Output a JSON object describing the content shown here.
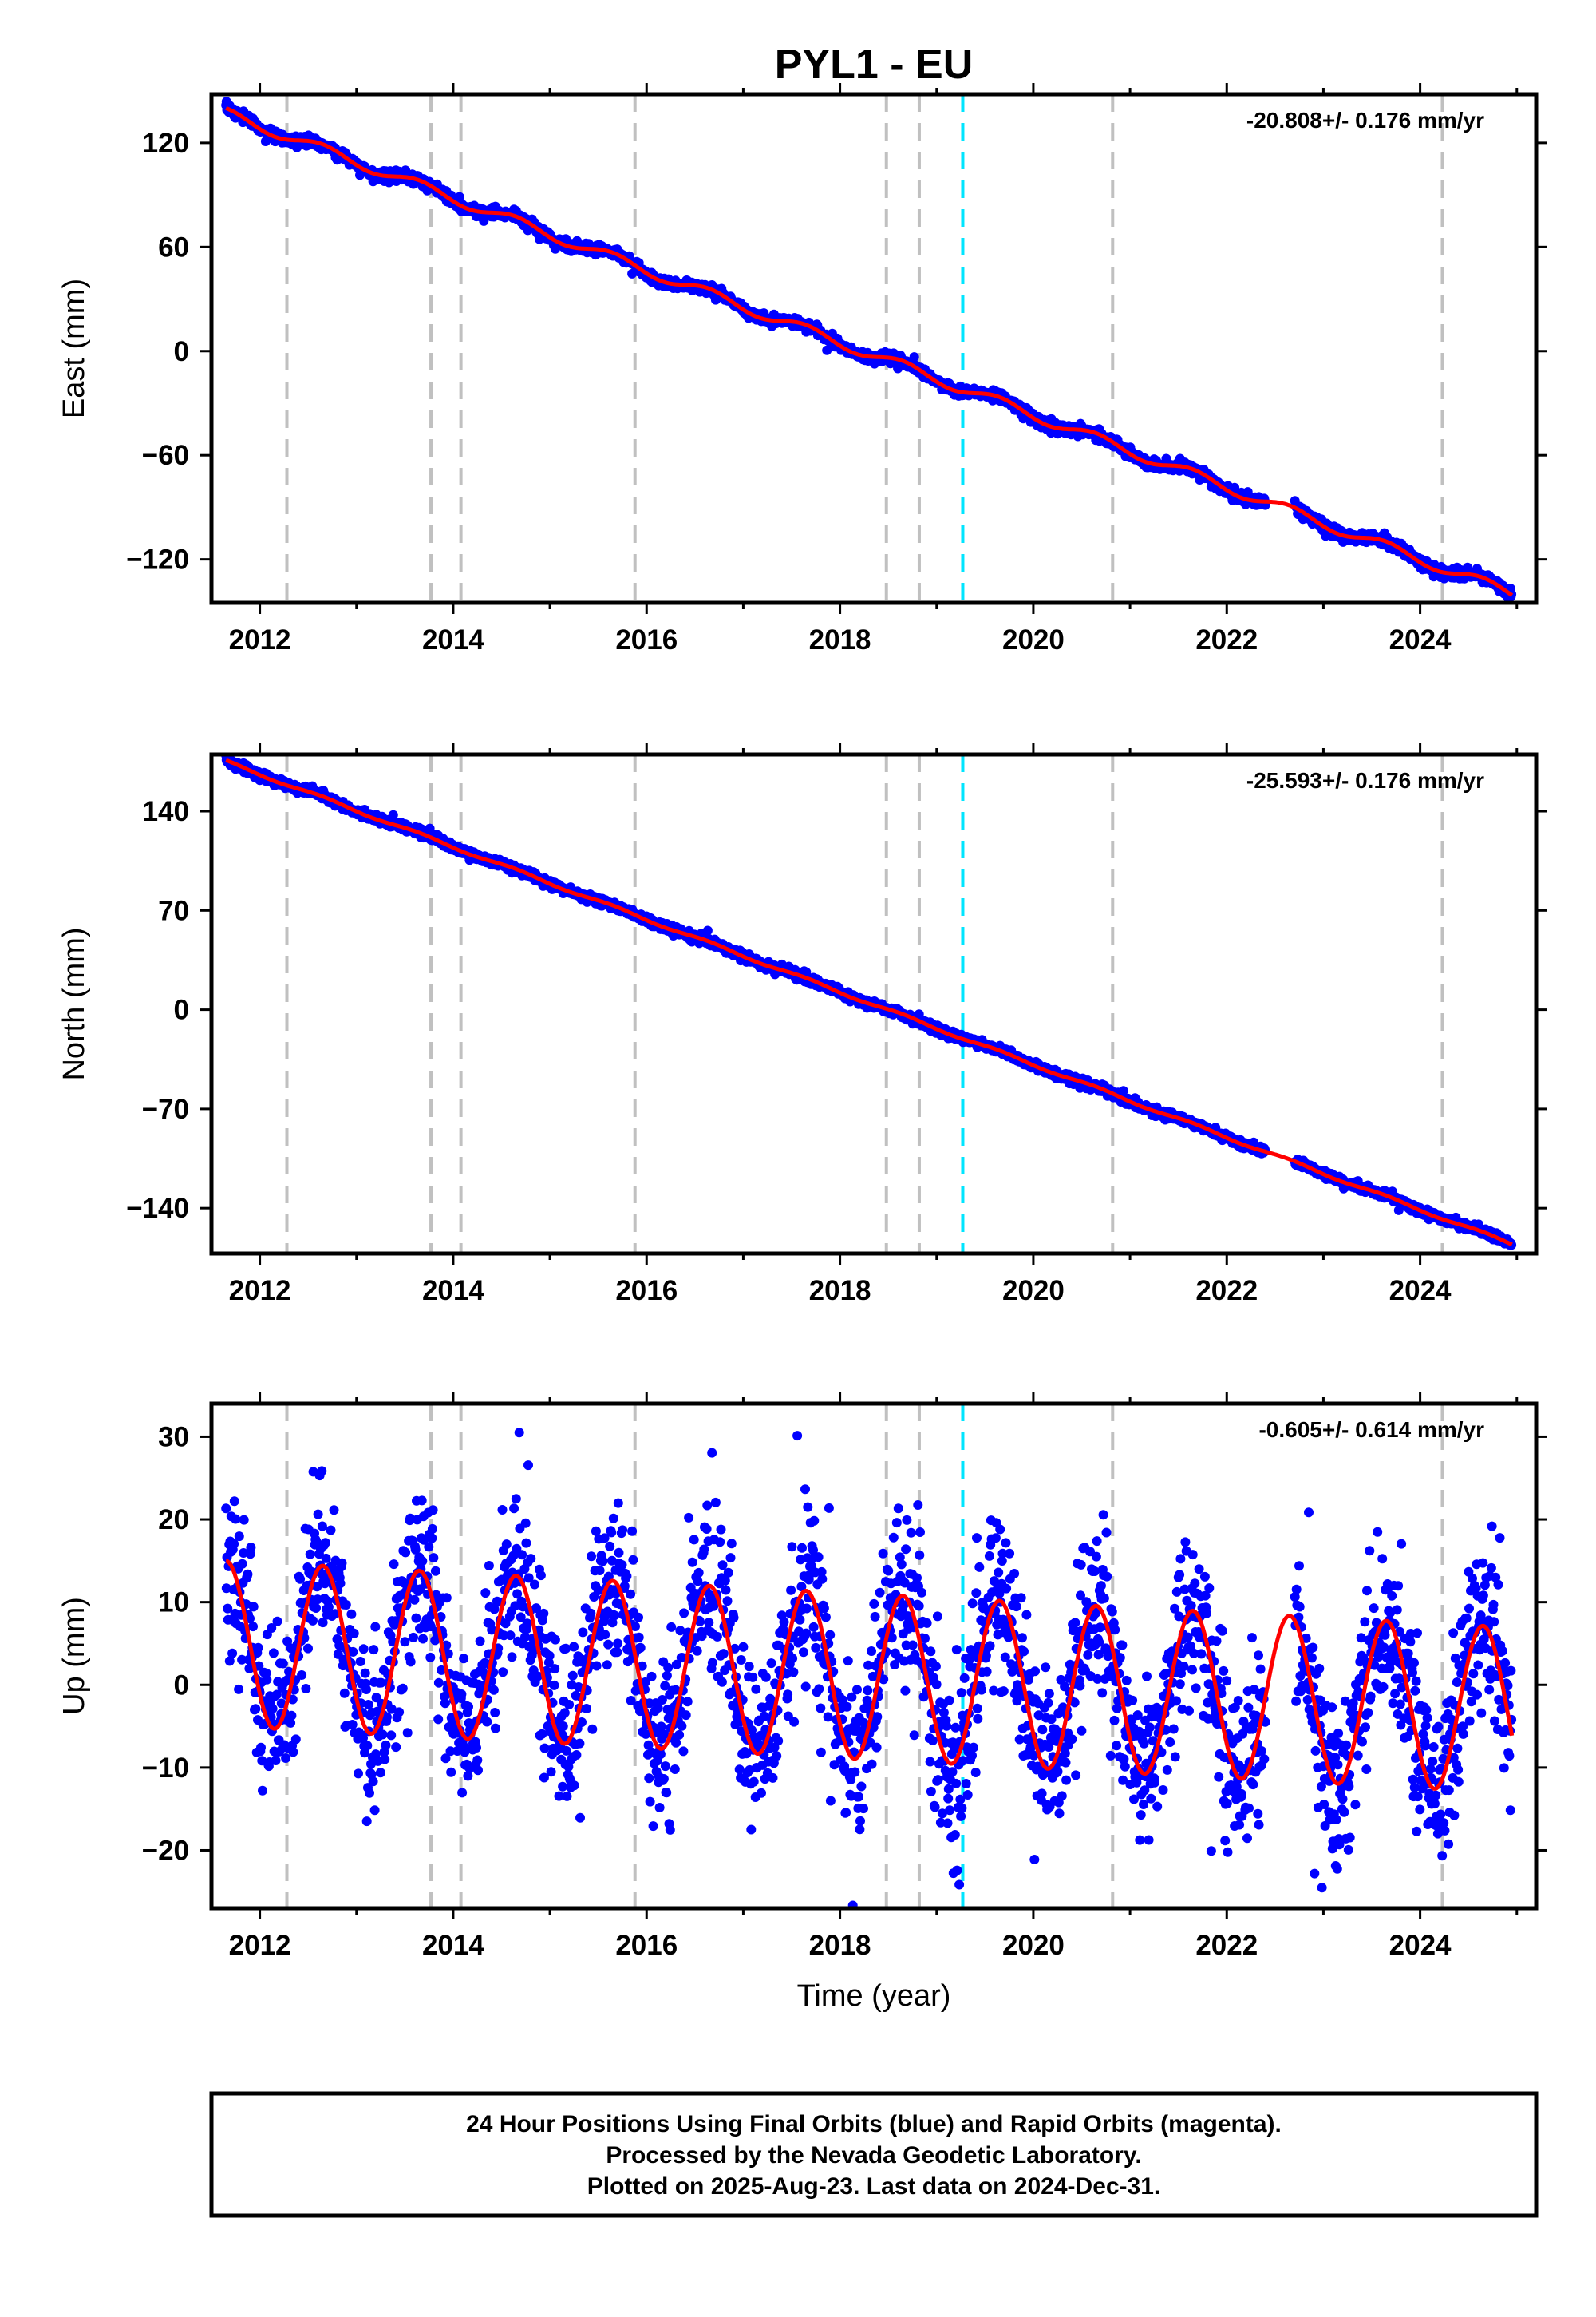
{
  "title": "PYL1 - EU",
  "colors": {
    "final_orbits": "#0000ff",
    "rapid_orbits": "#ff00ff",
    "model_fit": "#ff0000",
    "equipment_change": "#c0c0c0",
    "earthquake": "#00e5ff"
  },
  "chart_data": [
    {
      "type": "scatter",
      "name": "east",
      "ylabel": "East (mm)",
      "xlabel": "",
      "rate_label": "-20.808+/- 0.176 mm/yr",
      "xlim": [
        2011.5,
        2025.2
      ],
      "ylim": [
        -145,
        148
      ],
      "xticks": [
        2012,
        2014,
        2016,
        2018,
        2020,
        2022,
        2024
      ],
      "yticks": [
        120,
        60,
        0,
        -60,
        -120
      ],
      "model": {
        "start": 2011.65,
        "end": 2024.95,
        "value_at_start": 137,
        "rate_mm_per_yr": -20.808,
        "seasonal_amp": 3,
        "offsets": [],
        "gap": [
          2022.4,
          2022.7
        ]
      },
      "series": [
        {
          "name": "final_orbits",
          "noise_mm": 1.5
        }
      ]
    },
    {
      "type": "scatter",
      "name": "north",
      "ylabel": "North (mm)",
      "xlabel": "",
      "rate_label": "-25.593+/- 0.176 mm/yr",
      "xlim": [
        2011.5,
        2025.2
      ],
      "ylim": [
        -172,
        180
      ],
      "xticks": [
        2012,
        2014,
        2016,
        2018,
        2020,
        2022,
        2024
      ],
      "yticks": [
        140,
        70,
        0,
        -70,
        -140
      ],
      "model": {
        "start": 2011.65,
        "end": 2024.95,
        "value_at_start": 175,
        "rate_mm_per_yr": -25.593,
        "seasonal_amp": 1,
        "offsets": [],
        "gap": [
          2022.4,
          2022.7
        ]
      },
      "series": [
        {
          "name": "final_orbits",
          "noise_mm": 1.5
        }
      ]
    },
    {
      "type": "scatter",
      "name": "up",
      "ylabel": "Up (mm)",
      "xlabel": "Time (year)",
      "rate_label": "-0.605+/- 0.614 mm/yr",
      "xlim": [
        2011.5,
        2025.2
      ],
      "ylim": [
        -27,
        34
      ],
      "xticks": [
        2012,
        2014,
        2016,
        2018,
        2020,
        2022,
        2024
      ],
      "yticks": [
        30,
        20,
        10,
        0,
        -10,
        -20
      ],
      "model": {
        "start": 2011.65,
        "end": 2024.95,
        "value_at_start": 5,
        "rate_mm_per_yr": -0.605,
        "seasonal_amp": 10,
        "offsets": [],
        "gap": [
          2022.4,
          2022.7
        ]
      },
      "series": [
        {
          "name": "final_orbits",
          "noise_mm": 5
        }
      ]
    }
  ],
  "event_lines": {
    "equipment_changes": [
      2012.28,
      2013.77,
      2014.08,
      2015.88,
      2018.48,
      2018.82,
      2020.82,
      2024.23
    ],
    "earthquakes": [
      2019.27
    ]
  },
  "footer": {
    "line1": "24 Hour Positions Using Final Orbits (blue) and Rapid Orbits (magenta).",
    "line2": "Processed by the Nevada Geodetic Laboratory.",
    "line3": "Plotted on 2025-Aug-23. Last data on 2024-Dec-31."
  }
}
